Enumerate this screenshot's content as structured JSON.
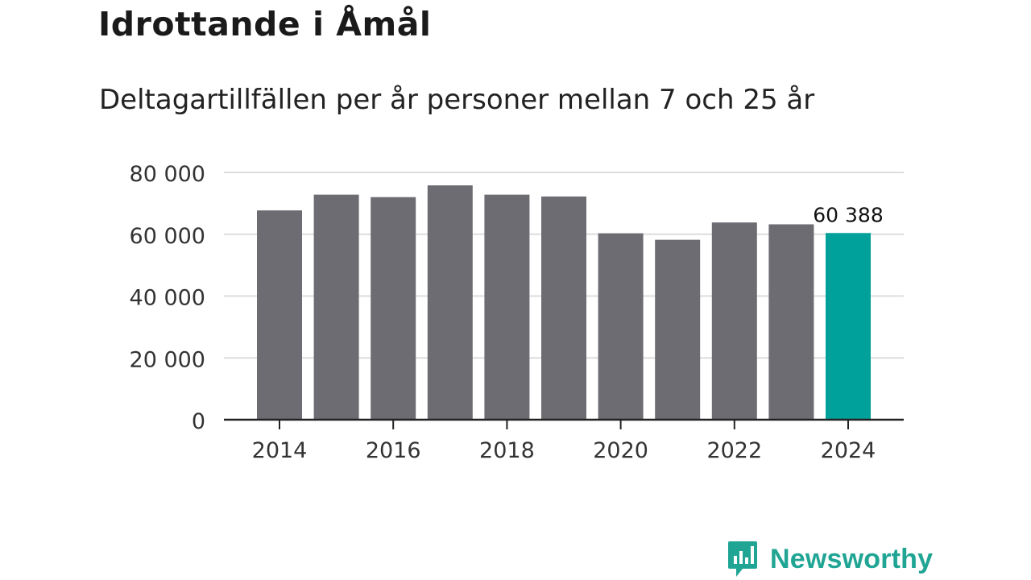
{
  "header": {
    "title": "Idrottande i Åmål",
    "subtitle": "Deltagartillfällen per år personer mellan 7 och 25 år"
  },
  "brand": {
    "name": "Newsworthy",
    "color": "#20a594"
  },
  "colors": {
    "bar": "#6d6c73",
    "highlight": "#00a19a",
    "grid": "#dddddd",
    "axis": "#222222"
  },
  "chart_data": {
    "type": "bar",
    "title": "Idrottande i Åmål",
    "subtitle": "Deltagartillfällen per år personer mellan 7 och 25 år",
    "xlabel": "",
    "ylabel": "",
    "categories": [
      "2014",
      "2015",
      "2016",
      "2017",
      "2018",
      "2019",
      "2020",
      "2021",
      "2022",
      "2023",
      "2024"
    ],
    "values": [
      67700,
      72800,
      72000,
      75800,
      72800,
      72200,
      60300,
      58200,
      63800,
      63200,
      60388
    ],
    "highlight_index": 10,
    "highlight_label": "60 388",
    "ylim": [
      0,
      80000
    ],
    "yticks": [
      0,
      20000,
      40000,
      60000,
      80000
    ],
    "ytick_labels": [
      "0",
      "20 000",
      "40 000",
      "60 000",
      "80 000"
    ],
    "xtick_labels": [
      "2014",
      "2016",
      "2018",
      "2020",
      "2022",
      "2024"
    ],
    "grid": true
  }
}
